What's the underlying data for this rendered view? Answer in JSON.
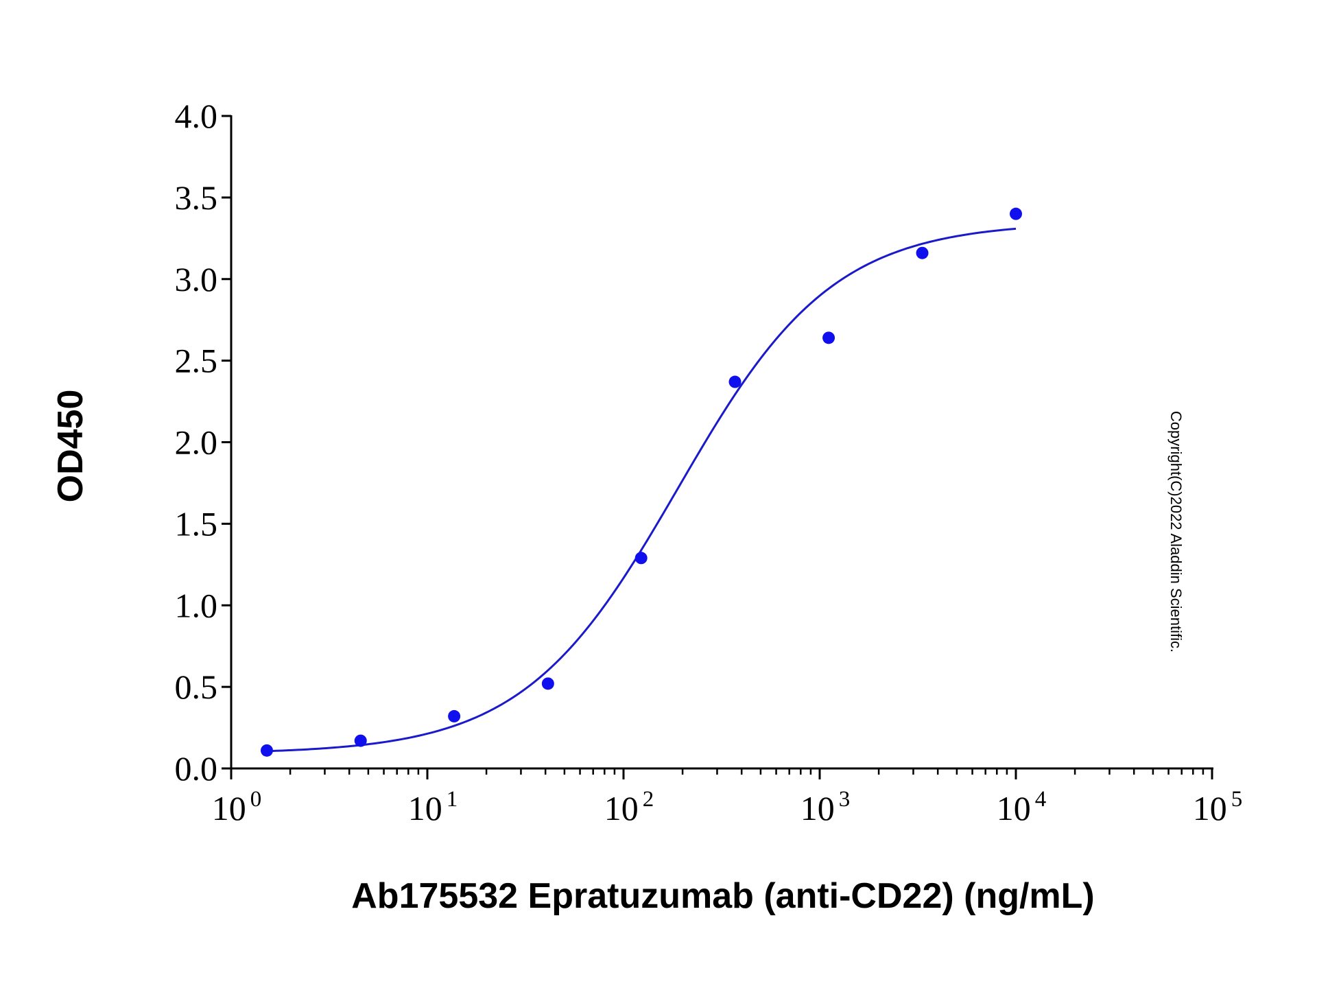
{
  "chart_data": {
    "type": "scatter",
    "xlabel": "Ab175532 Epratuzumab (anti-CD22) (ng/mL)",
    "ylabel": "OD450",
    "x_scale": "log",
    "xlim": [
      1,
      100000
    ],
    "ylim": [
      0,
      4.0
    ],
    "x_ticks": [
      {
        "base": "10",
        "exp": "0"
      },
      {
        "base": "10",
        "exp": "1"
      },
      {
        "base": "10",
        "exp": "2"
      },
      {
        "base": "10",
        "exp": "3"
      },
      {
        "base": "10",
        "exp": "4"
      },
      {
        "base": "10",
        "exp": "5"
      }
    ],
    "y_ticks": [
      "0.0",
      "0.5",
      "1.0",
      "1.5",
      "2.0",
      "2.5",
      "3.0",
      "3.5",
      "4.0"
    ],
    "grid": false,
    "legend": "none",
    "series": [
      {
        "x": [
          1.52,
          4.57,
          13.7,
          41.2,
          123,
          370,
          1111,
          3333,
          10000
        ],
        "y": [
          0.11,
          0.17,
          0.32,
          0.52,
          1.29,
          2.37,
          2.64,
          3.16,
          3.4
        ],
        "color": "#1010ee",
        "fit_curve": {
          "model": "4PL",
          "bottom": 0.09,
          "top": 3.35,
          "ec50": 190,
          "hill": 1.1,
          "x_range": [
            1.52,
            10000
          ],
          "color": "#1a1acc"
        }
      }
    ],
    "annotations": [
      "Copyright(C)2022 Aladdin Scientific."
    ]
  }
}
